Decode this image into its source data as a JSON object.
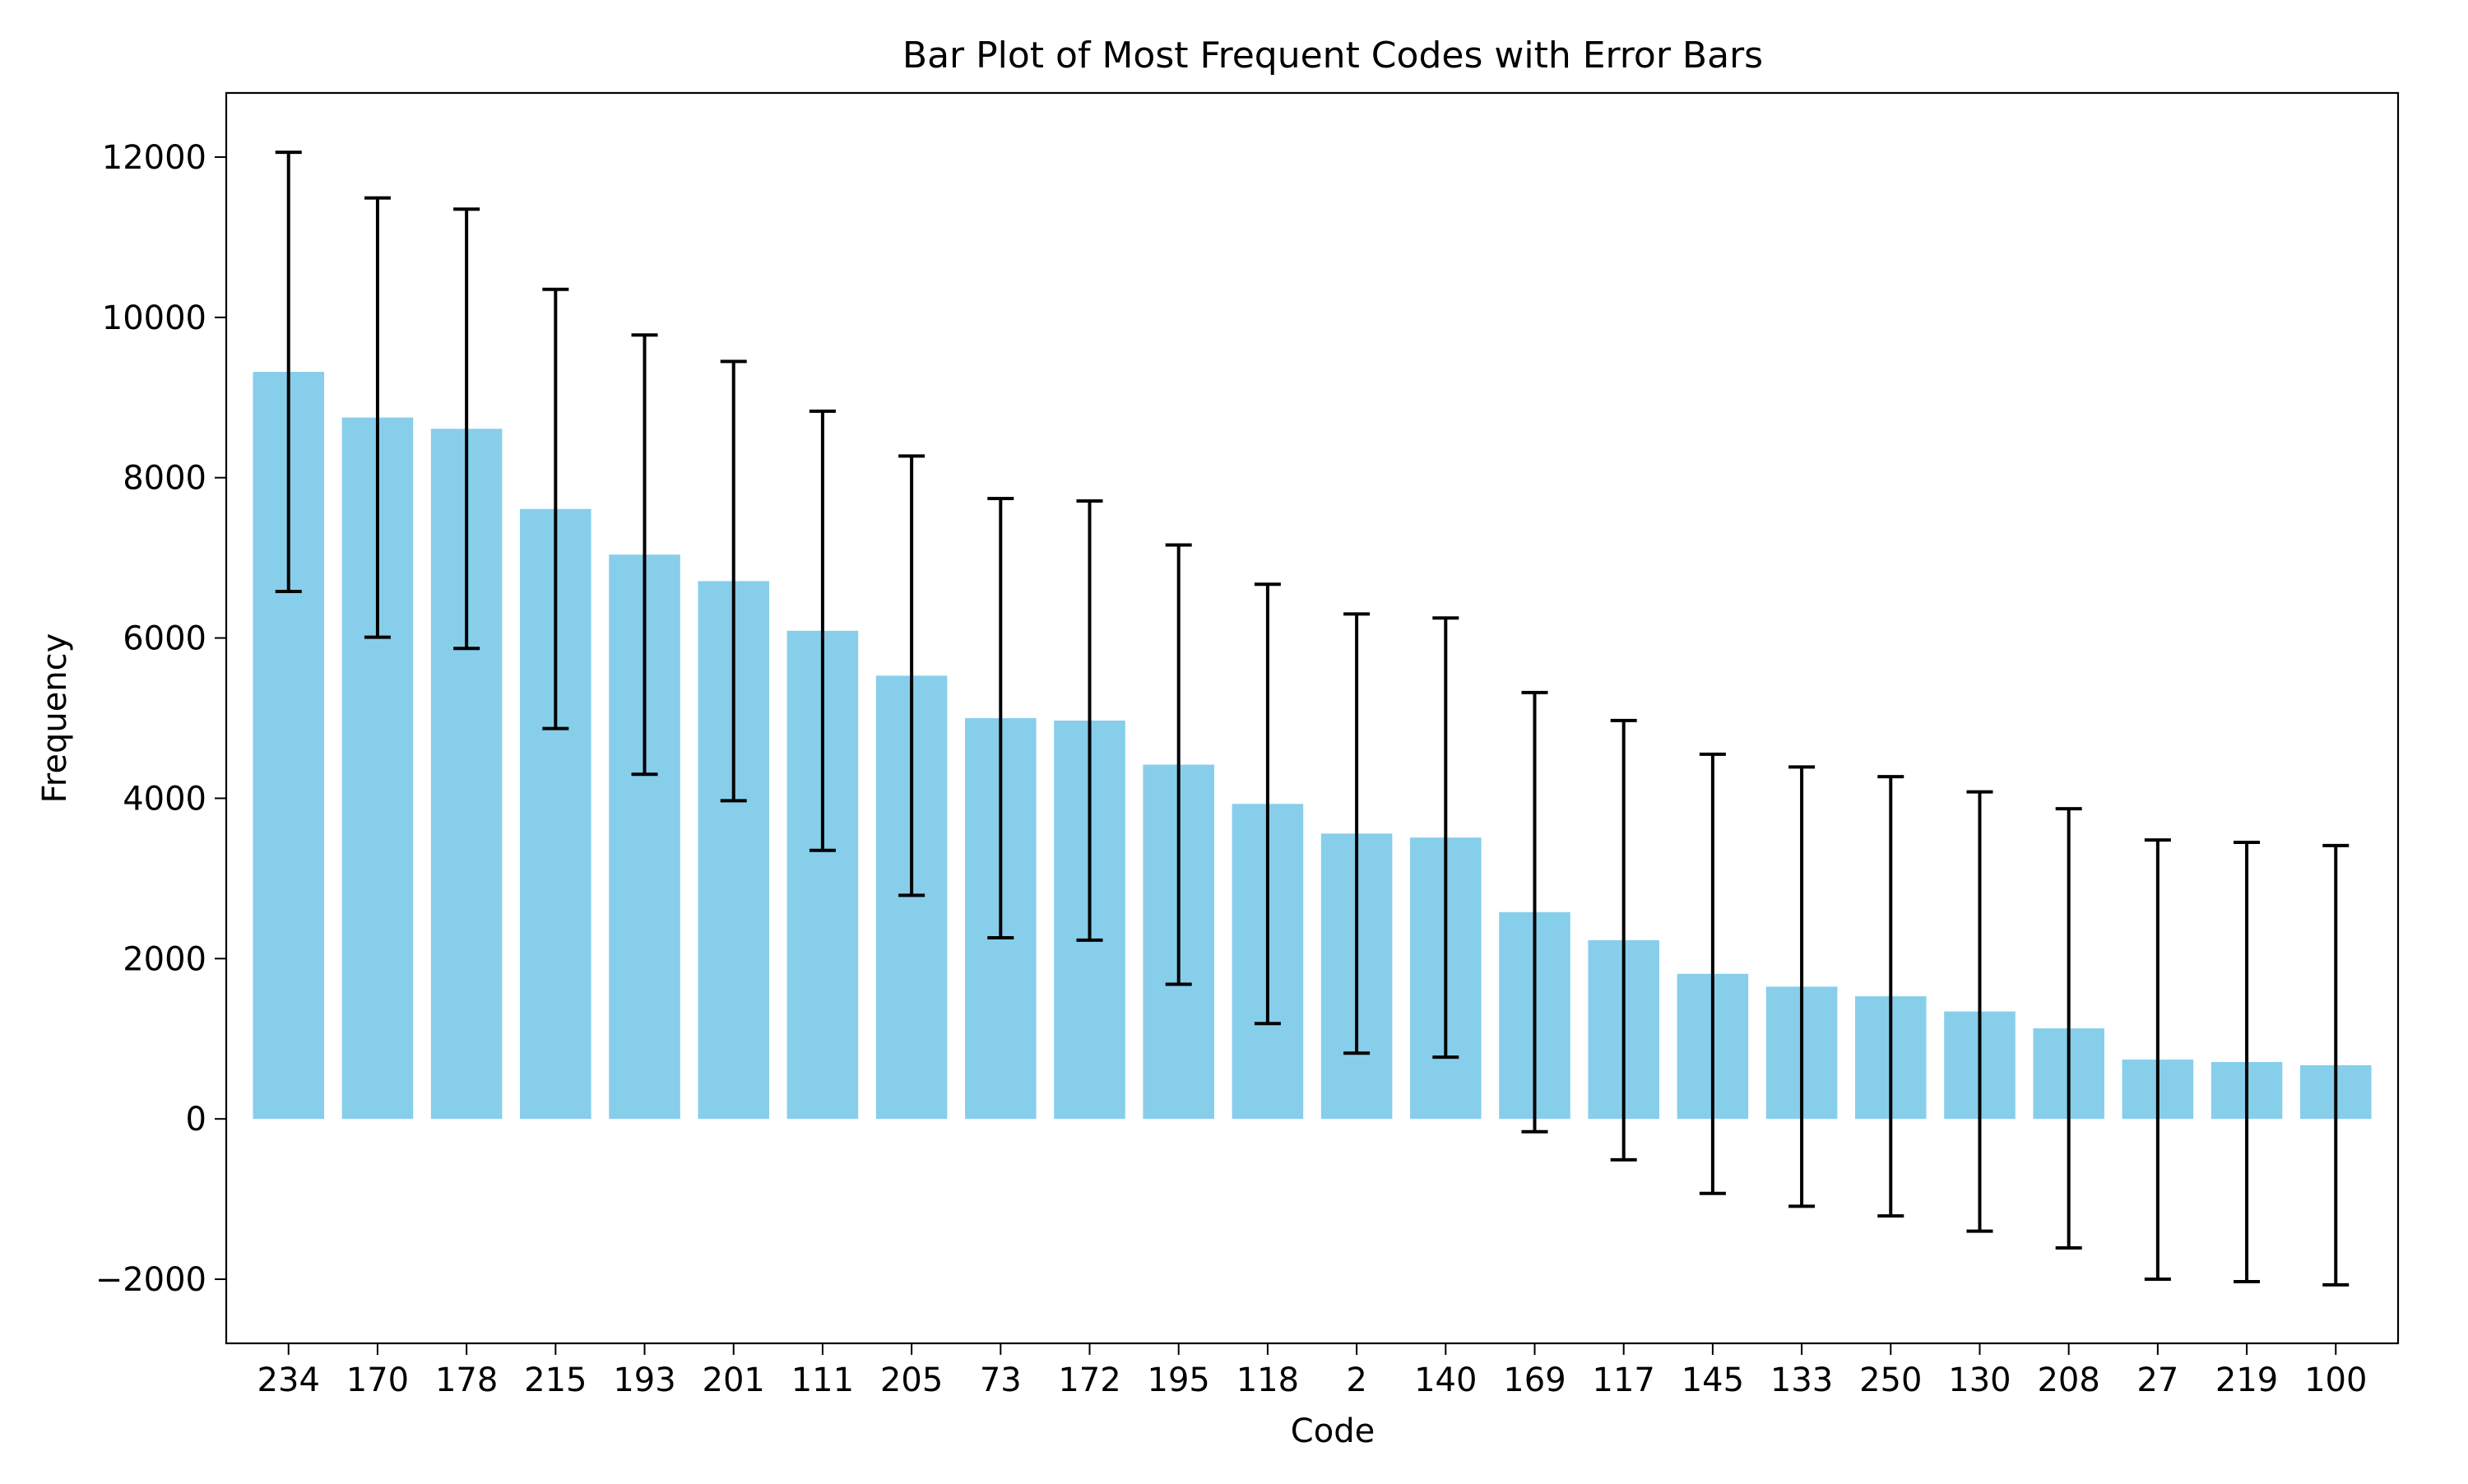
{
  "chart_data": {
    "type": "bar",
    "title": "Bar Plot of Most Frequent Codes with Error Bars",
    "xlabel": "Code",
    "ylabel": "Frequency",
    "categories": [
      "234",
      "170",
      "178",
      "215",
      "193",
      "201",
      "111",
      "205",
      "73",
      "172",
      "195",
      "118",
      "2",
      "140",
      "169",
      "117",
      "145",
      "133",
      "250",
      "130",
      "208",
      "27",
      "219",
      "100"
    ],
    "values": [
      9320,
      8750,
      8610,
      7610,
      7040,
      6710,
      6090,
      5530,
      5000,
      4970,
      4420,
      3930,
      3560,
      3510,
      2580,
      2230,
      1810,
      1650,
      1530,
      1340,
      1130,
      740,
      710,
      670
    ],
    "error": [
      2740,
      2740,
      2740,
      2740,
      2740,
      2740,
      2740,
      2740,
      2740,
      2740,
      2740,
      2740,
      2740,
      2740,
      2740,
      2740,
      2740,
      2740,
      2740,
      2740,
      2740,
      2740,
      2740,
      2740
    ],
    "ylim": [
      -2800,
      12800
    ],
    "yticks": [
      -2000,
      0,
      2000,
      4000,
      6000,
      8000,
      10000,
      12000
    ],
    "ytick_labels": [
      "−2000",
      "0",
      "2000",
      "4000",
      "6000",
      "8000",
      "10000",
      "12000"
    ],
    "grid": false,
    "colors": {
      "bar": "#87ceeb",
      "error_bar": "#000000",
      "axes": "#000000"
    }
  }
}
